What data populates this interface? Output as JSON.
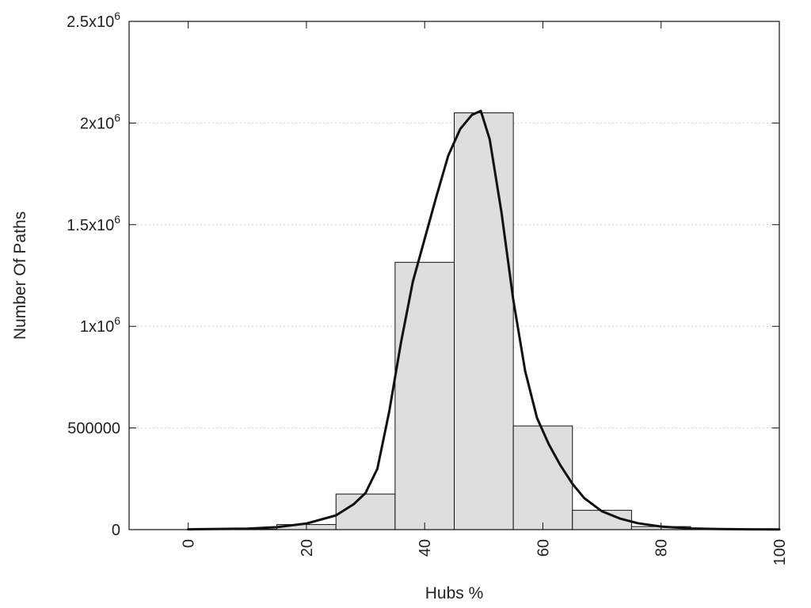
{
  "chart_data": {
    "type": "bar",
    "xlabel": "Hubs %",
    "ylabel": "Number Of Paths",
    "xlim": [
      -10,
      100
    ],
    "ylim": [
      0,
      2500000
    ],
    "grid": "horizontal dotted",
    "x_ticks": [
      0,
      20,
      40,
      60,
      80,
      100
    ],
    "y_ticks": [
      {
        "value": 0,
        "label": "0"
      },
      {
        "value": 500000,
        "label": "500000"
      },
      {
        "value": 1000000,
        "label": "1x10",
        "sup": "6"
      },
      {
        "value": 1500000,
        "label": "1.5x10",
        "sup": "6"
      },
      {
        "value": 2000000,
        "label": "2x10",
        "sup": "6"
      },
      {
        "value": 2500000,
        "label": "2.5x10",
        "sup": "6"
      }
    ],
    "bars": [
      {
        "x": 10,
        "value": 2000
      },
      {
        "x": 20,
        "value": 25000
      },
      {
        "x": 30,
        "value": 175000
      },
      {
        "x": 40,
        "value": 1315000
      },
      {
        "x": 50,
        "value": 2050000
      },
      {
        "x": 60,
        "value": 510000
      },
      {
        "x": 70,
        "value": 95000
      },
      {
        "x": 80,
        "value": 15000
      },
      {
        "x": 90,
        "value": 3000
      }
    ],
    "bin_width": 10,
    "curve": {
      "x": [
        0,
        10,
        15,
        20,
        25,
        28,
        30,
        32,
        34,
        36,
        38,
        40,
        42,
        44,
        46,
        48,
        49.5,
        51,
        53,
        55,
        57,
        59,
        61,
        63,
        65,
        67,
        70,
        73,
        76,
        80,
        85,
        90,
        95,
        100
      ],
      "y": [
        1500,
        5000,
        12000,
        30000,
        70000,
        125000,
        180000,
        300000,
        580000,
        920000,
        1220000,
        1430000,
        1640000,
        1840000,
        1970000,
        2040000,
        2060000,
        1920000,
        1560000,
        1130000,
        780000,
        550000,
        420000,
        315000,
        225000,
        155000,
        90000,
        55000,
        32000,
        15000,
        6000,
        3000,
        1500,
        800
      ]
    },
    "colors": {
      "bar_fill": "#dedede",
      "bar_stroke": "#111111",
      "curve": "#111111",
      "grid": "#cfcfcf"
    }
  }
}
